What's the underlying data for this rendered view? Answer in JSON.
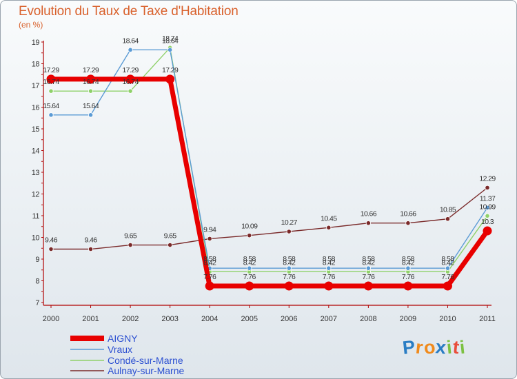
{
  "header": {
    "title": "Evolution du Taux de Taxe d'Habitation",
    "unit": "(en %)"
  },
  "logo": {
    "letters": [
      "P",
      "r",
      "o",
      "x",
      "i",
      "t",
      "i"
    ],
    "colors": [
      "#2a7dc4",
      "#f08a1c",
      "#f08a1c",
      "#2a7dc4",
      "#7cc142",
      "#e94e3c",
      "#7cc142"
    ]
  },
  "chart_data": {
    "type": "line",
    "title": "Evolution du Taux de Taxe d'Habitation",
    "ylabel": "(en %)",
    "xlabel": "",
    "x": [
      "2000",
      "2001",
      "2002",
      "2003",
      "2004",
      "2005",
      "2006",
      "2007",
      "2008",
      "2009",
      "2010",
      "2011"
    ],
    "ylim": [
      7,
      19
    ],
    "yticks": [
      "7",
      "8",
      "9",
      "10",
      "11",
      "12",
      "13",
      "14",
      "15",
      "16",
      "17",
      "18",
      "19"
    ],
    "grid": false,
    "legend": "bottom-left",
    "series": [
      {
        "name": "AIGNY",
        "color": "#e80000",
        "values": [
          17.29,
          17.29,
          17.29,
          17.29,
          7.76,
          7.76,
          7.76,
          7.76,
          7.76,
          7.76,
          7.76,
          10.3
        ],
        "labels": [
          "17.29",
          "17.29",
          "17.29",
          "17.29",
          "7.76",
          "7.76",
          "7.76",
          "7.76",
          "7.76",
          "7.76",
          "7.76",
          "10.3"
        ]
      },
      {
        "name": "Vraux",
        "color": "#5b9bd5",
        "values": [
          15.64,
          15.64,
          18.64,
          18.64,
          8.58,
          8.58,
          8.58,
          8.58,
          8.58,
          8.58,
          8.58,
          11.37
        ],
        "labels": [
          "15.64",
          "15.64",
          "18.64",
          "18.64",
          "8.58",
          "8.58",
          "8.58",
          "8.58",
          "8.58",
          "8.58",
          "8.58",
          "11.37"
        ]
      },
      {
        "name": "Condé-sur-Marne",
        "color": "#8fd16a",
        "values": [
          16.74,
          16.74,
          16.74,
          18.74,
          8.42,
          8.42,
          8.42,
          8.42,
          8.42,
          8.42,
          8.42,
          10.99
        ],
        "labels": [
          "16.74",
          "16.74",
          "16.74",
          "18.74",
          "8.42",
          "8.42",
          "8.42",
          "8.42",
          "8.42",
          "8.42",
          "8.42",
          "10.99"
        ]
      },
      {
        "name": "Aulnay-sur-Marne",
        "color": "#7a2a2a",
        "values": [
          9.46,
          9.46,
          9.65,
          9.65,
          9.94,
          10.09,
          10.27,
          10.45,
          10.66,
          10.66,
          10.85,
          12.29
        ],
        "labels": [
          "9.46",
          "9.46",
          "9.65",
          "9.65",
          "9.94",
          "10.09",
          "10.27",
          "10.45",
          "10.66",
          "10.66",
          "10.85",
          "12.29"
        ]
      }
    ]
  }
}
